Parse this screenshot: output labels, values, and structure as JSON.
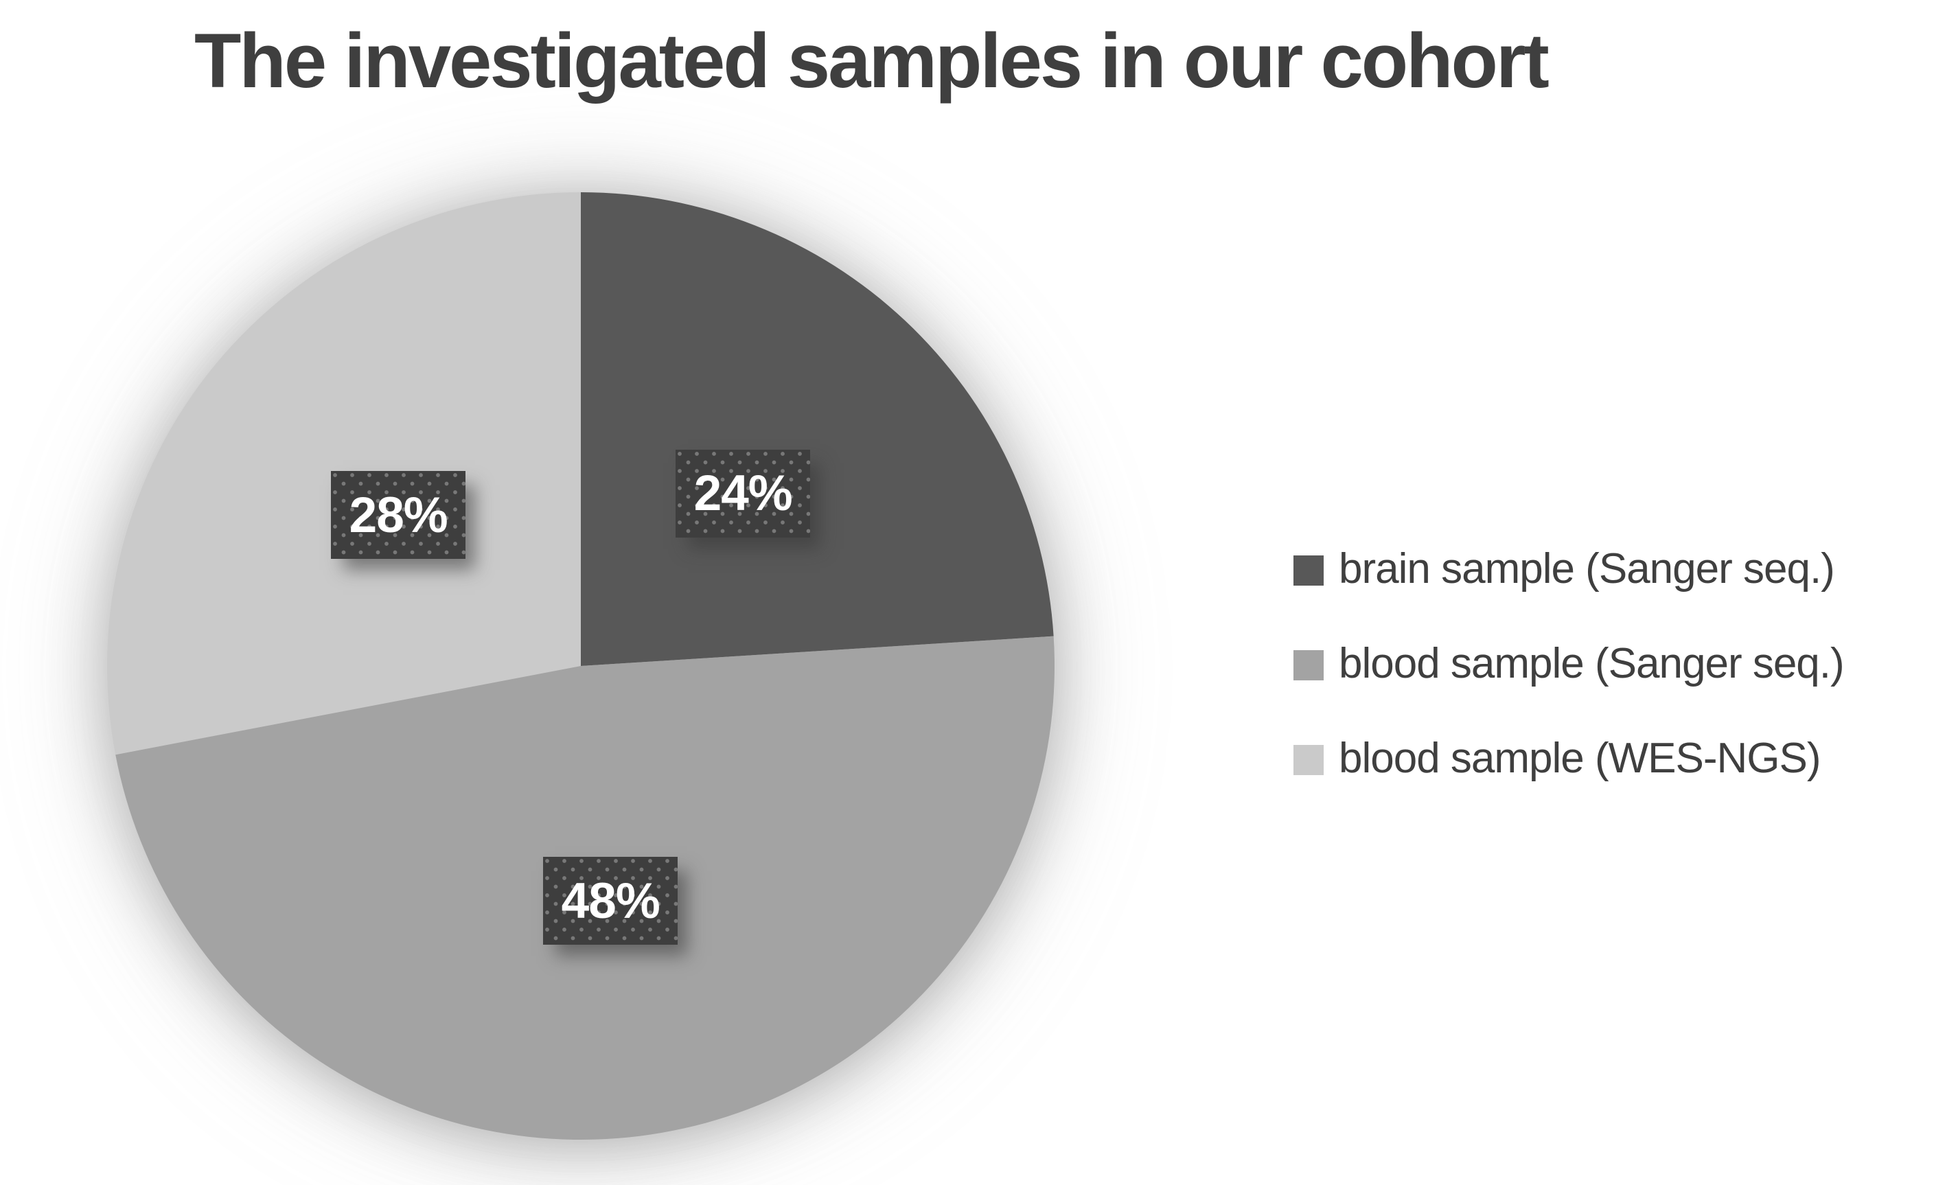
{
  "title": "The investigated samples in our cohort",
  "chart_data": {
    "type": "pie",
    "title": "The investigated samples in our cohort",
    "categories": [
      "brain sample (Sanger seq.)",
      "blood sample (Sanger seq.)",
      "blood sample (WES-NGS)"
    ],
    "values": [
      24,
      48,
      28
    ],
    "unit": "percent",
    "colors": [
      "#585858",
      "#a3a3a3",
      "#cacaca"
    ],
    "data_labels": [
      "24%",
      "48%",
      "28%"
    ],
    "label_text_color": "#ffffff",
    "label_box_color": "#3e3e3e",
    "start_angle_deg": 0,
    "direction": "clockwise",
    "legend_position": "right",
    "title_color": "#3f3f3f",
    "background_color": "#ffffff"
  },
  "legend": {
    "items": [
      {
        "label": "brain sample (Sanger seq.)",
        "color": "#585858"
      },
      {
        "label": "blood sample (Sanger seq.)",
        "color": "#a3a3a3"
      },
      {
        "label": "blood sample (WES-NGS)",
        "color": "#cacaca"
      }
    ]
  }
}
